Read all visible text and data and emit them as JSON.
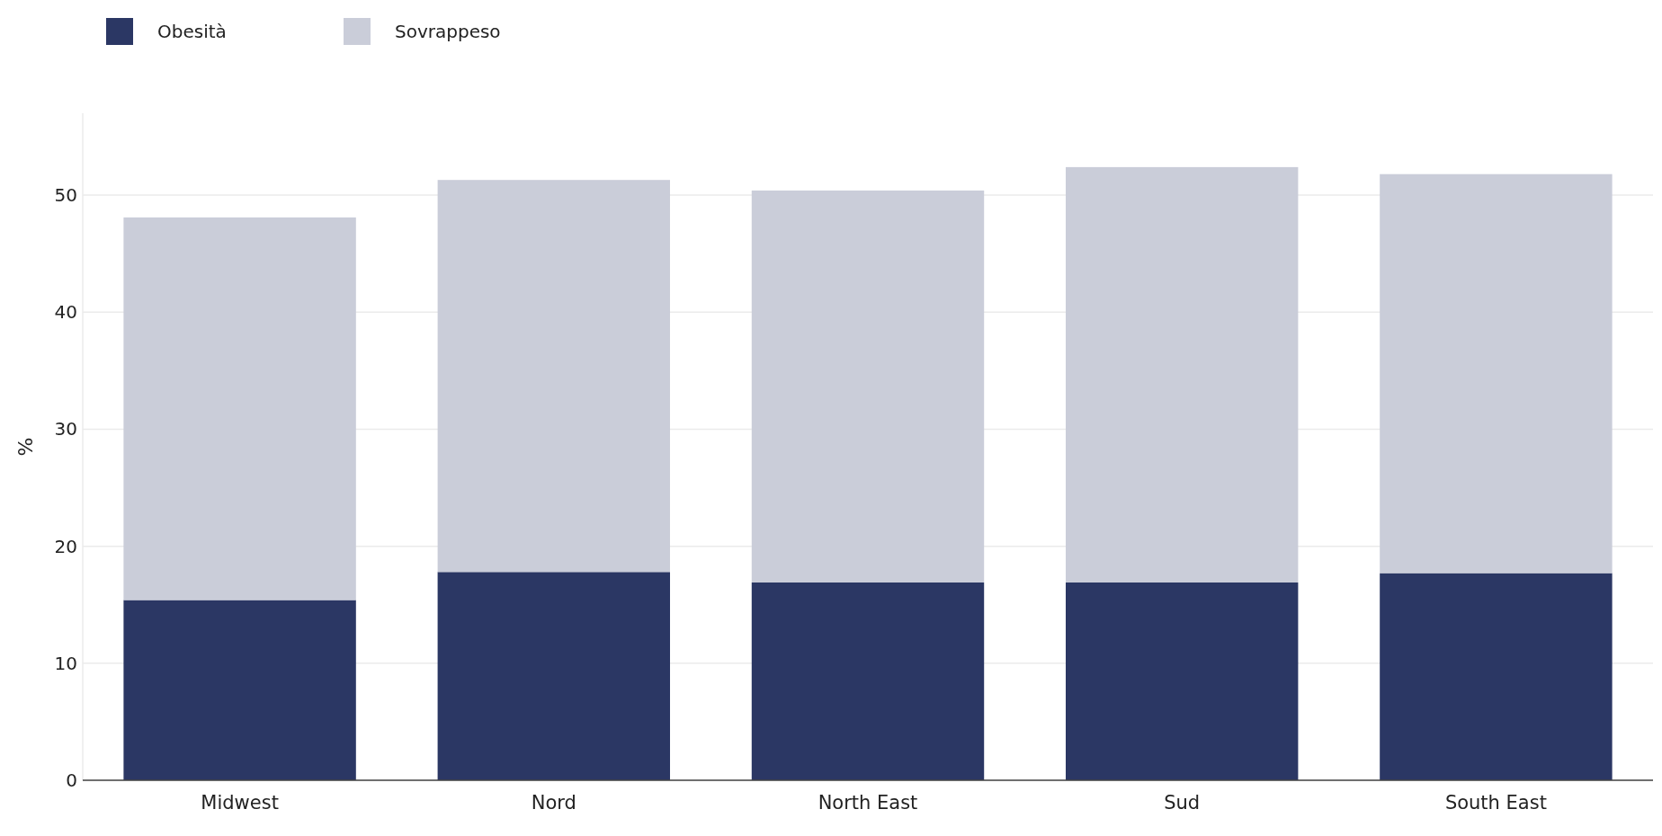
{
  "chart_data": {
    "type": "bar",
    "stacked": true,
    "categories": [
      "Midwest",
      "Nord",
      "North East",
      "Sud",
      "South East"
    ],
    "series": [
      {
        "name": "Obesità",
        "color": "#2b3764",
        "values": [
          15.4,
          17.8,
          16.9,
          16.9,
          17.7
        ]
      },
      {
        "name": "Sovrappeso",
        "color": "#cacdd9",
        "values": [
          32.7,
          33.5,
          33.5,
          35.5,
          34.1
        ]
      }
    ],
    "ylabel": "%",
    "ylim": [
      0,
      57
    ],
    "yticks": [
      0,
      10,
      20,
      30,
      40,
      50
    ],
    "grid": "y",
    "legend": "top left"
  }
}
